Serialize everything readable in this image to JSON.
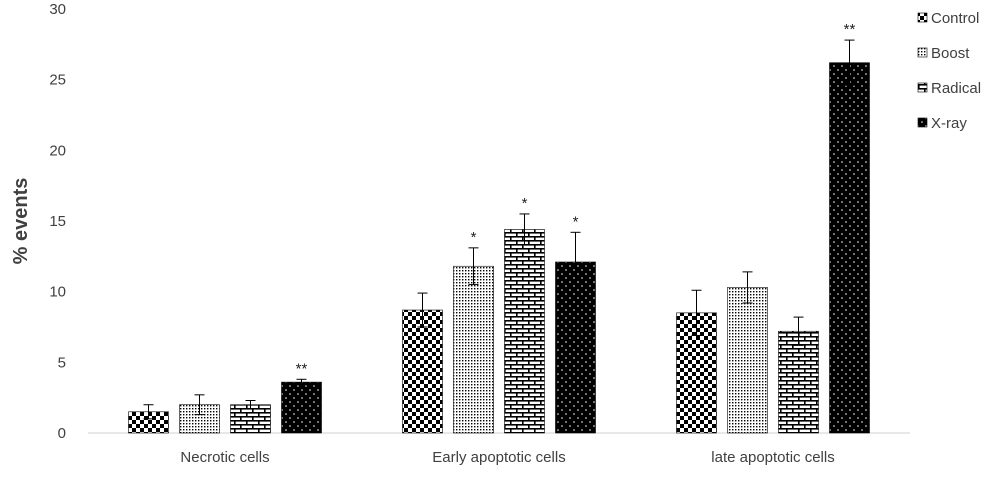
{
  "chart_data": {
    "type": "bar",
    "title": "",
    "xlabel": "",
    "ylabel": "% events",
    "ylim": [
      0,
      30
    ],
    "yticks": [
      0,
      5,
      10,
      15,
      20,
      25,
      30
    ],
    "grid": false,
    "legend_position": "top-right",
    "categories": [
      "Necrotic cells",
      "Early apoptotic cells",
      "late apoptotic cells"
    ],
    "series": [
      {
        "name": "Control",
        "pattern": "checker",
        "values": [
          1.5,
          8.7,
          8.5
        ],
        "errors": [
          0.5,
          1.2,
          1.6
        ],
        "significance": [
          "",
          "",
          ""
        ]
      },
      {
        "name": "Boost",
        "pattern": "dots",
        "values": [
          2.0,
          11.8,
          10.3
        ],
        "errors": [
          0.7,
          1.3,
          1.1
        ],
        "significance": [
          "",
          "*",
          ""
        ]
      },
      {
        "name": "Radical",
        "pattern": "brick",
        "values": [
          2.0,
          14.4,
          7.2
        ],
        "errors": [
          0.3,
          1.1,
          1.0
        ],
        "significance": [
          "",
          "*",
          ""
        ]
      },
      {
        "name": "X-ray",
        "pattern": "dark-dots",
        "values": [
          3.6,
          12.1,
          26.2
        ],
        "errors": [
          0.2,
          2.1,
          1.6
        ],
        "significance": [
          "**",
          "*",
          "**"
        ]
      }
    ]
  }
}
